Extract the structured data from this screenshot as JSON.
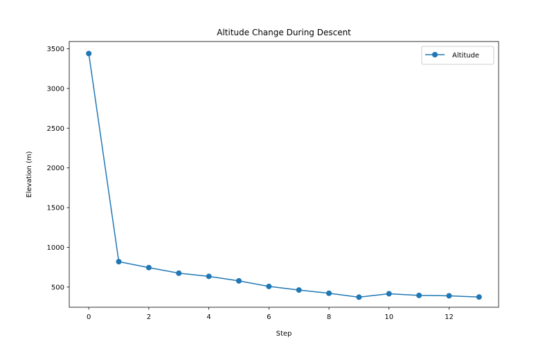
{
  "chart_data": {
    "type": "line",
    "title": "Altitude Change During Descent",
    "xlabel": "Step",
    "ylabel": "Elevation (m)",
    "xlim": [
      -0.65,
      13.65
    ],
    "ylim": [
      246,
      3591
    ],
    "xticks": [
      0,
      2,
      4,
      6,
      8,
      10,
      12
    ],
    "yticks": [
      500,
      1000,
      1500,
      2000,
      2500,
      3000,
      3500
    ],
    "grid": false,
    "legend_position": "top-right",
    "series": [
      {
        "name": "Altitude",
        "color": "#1f77b4",
        "marker": "circle",
        "x": [
          0,
          1,
          2,
          3,
          4,
          5,
          6,
          7,
          8,
          9,
          10,
          11,
          12,
          13
        ],
        "y": [
          3440,
          820,
          745,
          675,
          635,
          578,
          508,
          463,
          422,
          373,
          416,
          395,
          390,
          375
        ]
      }
    ]
  }
}
